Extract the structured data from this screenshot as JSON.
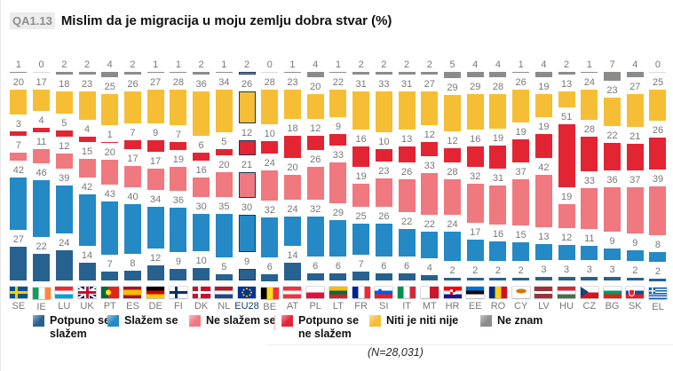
{
  "header": {
    "code": "QA1.13",
    "title": "Mislim da je migracija u moju zemlju dobra stvar (%)"
  },
  "colors": {
    "strongly_agree": "#27618F",
    "agree": "#2489C5",
    "disagree": "#F0787F",
    "strongly_disagree": "#E32433",
    "neither": "#F6BE35",
    "dont_know": "#8D8A8A",
    "zero_bar": "#D8D8D8",
    "eu_outline": "#17375E"
  },
  "legend": [
    {
      "label": "Potpuno se slažem",
      "key": "strongly_agree"
    },
    {
      "label": "Slažem se",
      "key": "agree"
    },
    {
      "label": "Ne slažem se",
      "key": "disagree"
    },
    {
      "label": "Potpuno se ne slažem",
      "key": "strongly_disagree"
    },
    {
      "label": "Niti je niti nije",
      "key": "neither"
    },
    {
      "label": "Ne znam",
      "key": "dont_know"
    }
  ],
  "footer": {
    "note": "(N=28,031)"
  },
  "chart_data": {
    "type": "bar",
    "stacked": true,
    "unit": "%",
    "title": "Mislim da je migracija u moju zemlju dobra stvar (%)",
    "stack_order_top_to_bottom": [
      "dont_know",
      "neither",
      "strongly_disagree",
      "disagree",
      "agree",
      "strongly_agree"
    ],
    "series_labels": {
      "strongly_agree": "Potpuno se slažem",
      "agree": "Slažem se",
      "disagree": "Ne slažem se",
      "strongly_disagree": "Potpuno se ne slažem",
      "neither": "Niti je niti nije",
      "dont_know": "Ne znam"
    },
    "countries": [
      {
        "code": "SE",
        "flag": "se",
        "highlighted": false,
        "values": {
          "dont_know": 1,
          "neither": 20,
          "strongly_disagree": 3,
          "disagree": 7,
          "agree": 42,
          "strongly_agree": 27
        }
      },
      {
        "code": "IE",
        "flag": "ie",
        "highlighted": false,
        "values": {
          "dont_know": 0,
          "neither": 17,
          "strongly_disagree": 4,
          "disagree": 11,
          "agree": 46,
          "strongly_agree": 22
        }
      },
      {
        "code": "LU",
        "flag": "lu",
        "highlighted": false,
        "values": {
          "dont_know": 2,
          "neither": 18,
          "strongly_disagree": 5,
          "disagree": 12,
          "agree": 39,
          "strongly_agree": 24
        }
      },
      {
        "code": "UK",
        "flag": "uk",
        "highlighted": false,
        "values": {
          "dont_know": 2,
          "neither": 23,
          "strongly_disagree": 4,
          "disagree": 15,
          "agree": 42,
          "strongly_agree": 14
        }
      },
      {
        "code": "PT",
        "flag": "pt",
        "highlighted": false,
        "values": {
          "dont_know": 4,
          "neither": 25,
          "strongly_disagree": 1,
          "disagree": 20,
          "agree": 43,
          "strongly_agree": 7
        }
      },
      {
        "code": "ES",
        "flag": "es",
        "highlighted": false,
        "values": {
          "dont_know": 2,
          "neither": 26,
          "strongly_disagree": 7,
          "disagree": 17,
          "agree": 40,
          "strongly_agree": 8
        }
      },
      {
        "code": "DE",
        "flag": "de",
        "highlighted": false,
        "values": {
          "dont_know": 1,
          "neither": 27,
          "strongly_disagree": 9,
          "disagree": 17,
          "agree": 34,
          "strongly_agree": 12
        }
      },
      {
        "code": "FI",
        "flag": "fi",
        "highlighted": false,
        "values": {
          "dont_know": 1,
          "neither": 28,
          "strongly_disagree": 7,
          "disagree": 19,
          "agree": 36,
          "strongly_agree": 9
        }
      },
      {
        "code": "DK",
        "flag": "dk",
        "highlighted": false,
        "values": {
          "dont_know": 2,
          "neither": 36,
          "strongly_disagree": 6,
          "disagree": 16,
          "agree": 30,
          "strongly_agree": 10
        }
      },
      {
        "code": "NL",
        "flag": "nl",
        "highlighted": false,
        "values": {
          "dont_know": 1,
          "neither": 34,
          "strongly_disagree": 5,
          "disagree": 20,
          "agree": 35,
          "strongly_agree": 5
        }
      },
      {
        "code": "EU28",
        "flag": "eu28",
        "highlighted": true,
        "values": {
          "dont_know": 2,
          "neither": 26,
          "strongly_disagree": 12,
          "disagree": 21,
          "agree": 30,
          "strongly_agree": 9
        }
      },
      {
        "code": "BE",
        "flag": "be",
        "highlighted": false,
        "values": {
          "dont_know": 0,
          "neither": 28,
          "strongly_disagree": 10,
          "disagree": 24,
          "agree": 32,
          "strongly_agree": 6
        }
      },
      {
        "code": "AT",
        "flag": "at",
        "highlighted": false,
        "values": {
          "dont_know": 1,
          "neither": 23,
          "strongly_disagree": 18,
          "disagree": 20,
          "agree": 24,
          "strongly_agree": 14
        }
      },
      {
        "code": "PL",
        "flag": "pl",
        "highlighted": false,
        "values": {
          "dont_know": 4,
          "neither": 20,
          "strongly_disagree": 12,
          "disagree": 26,
          "agree": 32,
          "strongly_agree": 6
        }
      },
      {
        "code": "LT",
        "flag": "lt",
        "highlighted": false,
        "values": {
          "dont_know": 1,
          "neither": 22,
          "strongly_disagree": 9,
          "disagree": 33,
          "agree": 29,
          "strongly_agree": 6
        }
      },
      {
        "code": "FR",
        "flag": "fr",
        "highlighted": false,
        "values": {
          "dont_know": 2,
          "neither": 31,
          "strongly_disagree": 16,
          "disagree": 19,
          "agree": 25,
          "strongly_agree": 7
        }
      },
      {
        "code": "SI",
        "flag": "si",
        "highlighted": false,
        "values": {
          "dont_know": 2,
          "neither": 33,
          "strongly_disagree": 10,
          "disagree": 23,
          "agree": 26,
          "strongly_agree": 6
        }
      },
      {
        "code": "IT",
        "flag": "it",
        "highlighted": false,
        "values": {
          "dont_know": 2,
          "neither": 31,
          "strongly_disagree": 13,
          "disagree": 26,
          "agree": 22,
          "strongly_agree": 6
        }
      },
      {
        "code": "MT",
        "flag": "mt",
        "highlighted": false,
        "values": {
          "dont_know": 2,
          "neither": 27,
          "strongly_disagree": 12,
          "disagree": 33,
          "agree": 22,
          "strongly_agree": 4
        }
      },
      {
        "code": "HR",
        "flag": "hr",
        "highlighted": false,
        "values": {
          "dont_know": 5,
          "neither": 29,
          "strongly_disagree": 12,
          "disagree": 28,
          "agree": 24,
          "strongly_agree": 2
        }
      },
      {
        "code": "EE",
        "flag": "ee",
        "highlighted": false,
        "values": {
          "dont_know": 4,
          "neither": 29,
          "strongly_disagree": 16,
          "disagree": 32,
          "agree": 17,
          "strongly_agree": 2
        }
      },
      {
        "code": "RO",
        "flag": "ro",
        "highlighted": false,
        "values": {
          "dont_know": 4,
          "neither": 28,
          "strongly_disagree": 19,
          "disagree": 31,
          "agree": 16,
          "strongly_agree": 2
        }
      },
      {
        "code": "CY",
        "flag": "cy",
        "highlighted": false,
        "values": {
          "dont_know": 1,
          "neither": 26,
          "strongly_disagree": 19,
          "disagree": 37,
          "agree": 15,
          "strongly_agree": 2
        }
      },
      {
        "code": "LV",
        "flag": "lv",
        "highlighted": false,
        "values": {
          "dont_know": 4,
          "neither": 19,
          "strongly_disagree": 19,
          "disagree": 42,
          "agree": 13,
          "strongly_agree": 3
        }
      },
      {
        "code": "HU",
        "flag": "hu",
        "highlighted": false,
        "values": {
          "dont_know": 2,
          "neither": 13,
          "strongly_disagree": 51,
          "disagree": 19,
          "agree": 12,
          "strongly_agree": 3
        }
      },
      {
        "code": "CZ",
        "flag": "cz",
        "highlighted": false,
        "values": {
          "dont_know": 1,
          "neither": 24,
          "strongly_disagree": 28,
          "disagree": 33,
          "agree": 11,
          "strongly_agree": 3
        }
      },
      {
        "code": "BG",
        "flag": "bg",
        "highlighted": false,
        "values": {
          "dont_know": 7,
          "neither": 23,
          "strongly_disagree": 22,
          "disagree": 36,
          "agree": 9,
          "strongly_agree": 3
        }
      },
      {
        "code": "SK",
        "flag": "sk",
        "highlighted": false,
        "values": {
          "dont_know": 4,
          "neither": 27,
          "strongly_disagree": 21,
          "disagree": 37,
          "agree": 9,
          "strongly_agree": 2
        }
      },
      {
        "code": "EL",
        "flag": "el",
        "highlighted": false,
        "values": {
          "dont_know": 0,
          "neither": 25,
          "strongly_disagree": 26,
          "disagree": 39,
          "agree": 8,
          "strongly_agree": 2
        }
      }
    ]
  }
}
